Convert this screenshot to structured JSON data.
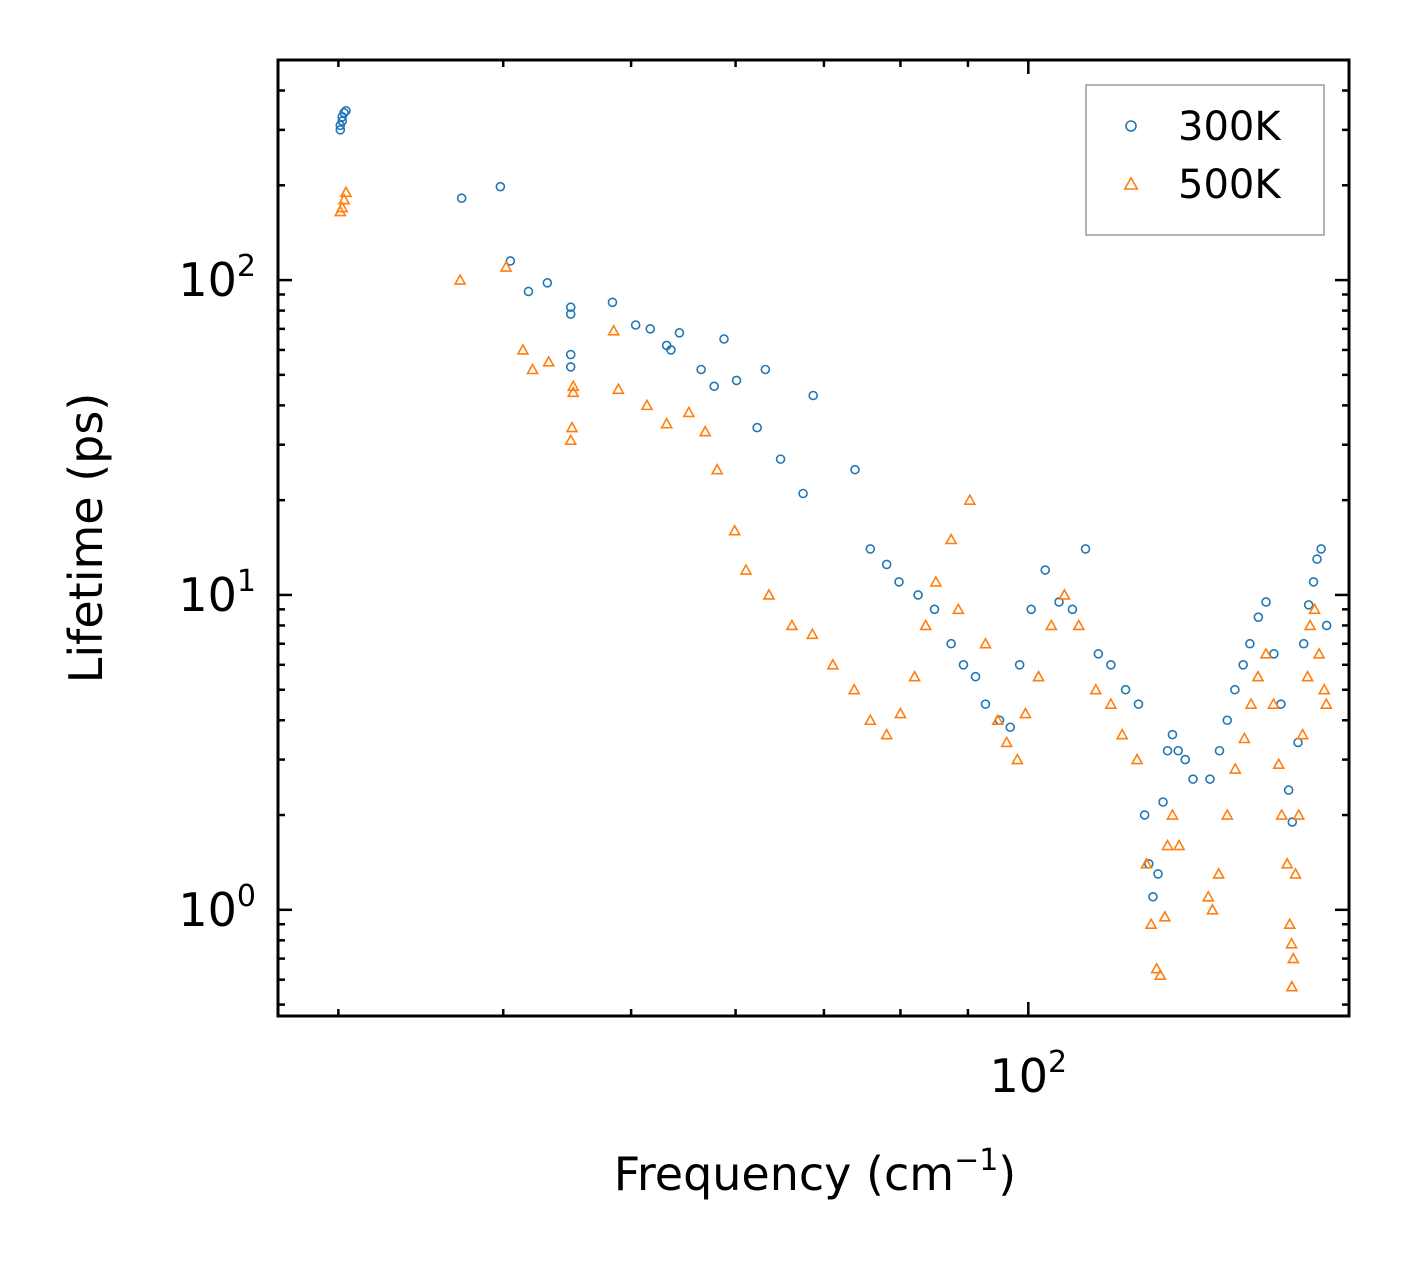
{
  "chart_data": {
    "type": "scatter",
    "title": "",
    "xlabel": "Frequency (cm",
    "xlabel_sup": "−1",
    "xlabel_suffix": ")",
    "ylabel": "Lifetime (ps)",
    "xscale": "log",
    "yscale": "log",
    "xlim": [
      27,
      175
    ],
    "ylim": [
      0.46,
      500
    ],
    "x_major_ticks": [
      {
        "value": 100,
        "base": "10",
        "exp": "2"
      }
    ],
    "y_major_ticks": [
      {
        "value": 1,
        "base": "10",
        "exp": "0"
      },
      {
        "value": 10,
        "base": "10",
        "exp": "1"
      },
      {
        "value": 100,
        "base": "10",
        "exp": "2"
      }
    ],
    "legend": {
      "position": "top-right"
    },
    "series": [
      {
        "name": "300K",
        "marker": "circle",
        "color": "#1f77b4",
        "points": [
          [
            30.3,
            340
          ],
          [
            30.2,
            330
          ],
          [
            30.1,
            310
          ],
          [
            30.1,
            300
          ],
          [
            30.4,
            345
          ],
          [
            30.2,
            320
          ],
          [
            37.2,
            182
          ],
          [
            39.8,
            198
          ],
          [
            40.5,
            115
          ],
          [
            41.8,
            92
          ],
          [
            43.2,
            98
          ],
          [
            45,
            82
          ],
          [
            45,
            78
          ],
          [
            45,
            58
          ],
          [
            45,
            53
          ],
          [
            48.4,
            85
          ],
          [
            50.4,
            72
          ],
          [
            51.7,
            70
          ],
          [
            53.2,
            62
          ],
          [
            53.6,
            60
          ],
          [
            54.4,
            68
          ],
          [
            56.5,
            52
          ],
          [
            57.8,
            46
          ],
          [
            58.8,
            65
          ],
          [
            60.1,
            48
          ],
          [
            62.3,
            34
          ],
          [
            63.2,
            52
          ],
          [
            64.9,
            27
          ],
          [
            67.5,
            21
          ],
          [
            68.7,
            43
          ],
          [
            73.9,
            25
          ],
          [
            75.9,
            14
          ],
          [
            78.1,
            12.5
          ],
          [
            79.8,
            11
          ],
          [
            82.5,
            10
          ],
          [
            84.9,
            9
          ],
          [
            87.4,
            7
          ],
          [
            89.3,
            6
          ],
          [
            91.2,
            5.5
          ],
          [
            92.8,
            4.5
          ],
          [
            95.1,
            4
          ],
          [
            96.9,
            3.8
          ],
          [
            98.5,
            6
          ],
          [
            100.5,
            9
          ],
          [
            103,
            12
          ],
          [
            105.5,
            9.5
          ],
          [
            108,
            9
          ],
          [
            110.5,
            14
          ],
          [
            113,
            6.5
          ],
          [
            115.5,
            6
          ],
          [
            118.5,
            5
          ],
          [
            121.2,
            4.5
          ],
          [
            122.5,
            2
          ],
          [
            123.4,
            1.4
          ],
          [
            124.3,
            1.1
          ],
          [
            125.4,
            1.3
          ],
          [
            126.5,
            2.2
          ],
          [
            127.5,
            3.2
          ],
          [
            128.6,
            3.6
          ],
          [
            129.9,
            3.2
          ],
          [
            131.5,
            3.0
          ],
          [
            133.3,
            2.6
          ],
          [
            137.3,
            2.6
          ],
          [
            139.6,
            3.2
          ],
          [
            141.5,
            4.0
          ],
          [
            143.4,
            5.0
          ],
          [
            145.5,
            6.0
          ],
          [
            147.2,
            7.0
          ],
          [
            149.4,
            8.5
          ],
          [
            151.4,
            9.5
          ],
          [
            153.5,
            6.5
          ],
          [
            155.4,
            4.5
          ],
          [
            157.5,
            2.4
          ],
          [
            158.5,
            1.9
          ],
          [
            160.1,
            3.4
          ],
          [
            161.7,
            7.0
          ],
          [
            163.1,
            9.3
          ],
          [
            164.5,
            11
          ],
          [
            165.5,
            13
          ],
          [
            166.7,
            14
          ],
          [
            168.3,
            8
          ]
        ]
      },
      {
        "name": "500K",
        "marker": "triangle",
        "color": "#ff7f0e",
        "points": [
          [
            30.2,
            170
          ],
          [
            30.1,
            165
          ],
          [
            30.3,
            180
          ],
          [
            30.4,
            190
          ],
          [
            37.1,
            100
          ],
          [
            40.2,
            110
          ],
          [
            41.4,
            60
          ],
          [
            42.1,
            52
          ],
          [
            43.3,
            55
          ],
          [
            45.2,
            46
          ],
          [
            45.2,
            44
          ],
          [
            45.1,
            34
          ],
          [
            45,
            31
          ],
          [
            48.5,
            69
          ],
          [
            48.9,
            45
          ],
          [
            51.4,
            40
          ],
          [
            53.2,
            35
          ],
          [
            55.3,
            38
          ],
          [
            56.9,
            33
          ],
          [
            58.1,
            25
          ],
          [
            59.9,
            16
          ],
          [
            61.1,
            12
          ],
          [
            63.6,
            10
          ],
          [
            66.2,
            8
          ],
          [
            68.6,
            7.5
          ],
          [
            71.1,
            6
          ],
          [
            73.8,
            5
          ],
          [
            75.9,
            4
          ],
          [
            78.1,
            3.6
          ],
          [
            80,
            4.2
          ],
          [
            82,
            5.5
          ],
          [
            83.6,
            8
          ],
          [
            85.1,
            11
          ],
          [
            87.4,
            15
          ],
          [
            88.5,
            9
          ],
          [
            90.3,
            20
          ],
          [
            92.8,
            7
          ],
          [
            94.8,
            4
          ],
          [
            96.3,
            3.4
          ],
          [
            98.1,
            3.0
          ],
          [
            99.5,
            4.2
          ],
          [
            101.8,
            5.5
          ],
          [
            104.1,
            8
          ],
          [
            106.5,
            10
          ],
          [
            109.2,
            8
          ],
          [
            112.5,
            5
          ],
          [
            115.5,
            4.5
          ],
          [
            117.8,
            3.6
          ],
          [
            120.9,
            3.0
          ],
          [
            122.9,
            1.4
          ],
          [
            123.9,
            0.9
          ],
          [
            125.1,
            0.65
          ],
          [
            125.9,
            0.62
          ],
          [
            126.9,
            0.95
          ],
          [
            127.5,
            1.6
          ],
          [
            128.6,
            2.0
          ],
          [
            130.1,
            1.6
          ],
          [
            136.9,
            1.1
          ],
          [
            137.9,
            1.0
          ],
          [
            139.4,
            1.3
          ],
          [
            141.5,
            2.0
          ],
          [
            143.5,
            2.8
          ],
          [
            145.8,
            3.5
          ],
          [
            147.5,
            4.5
          ],
          [
            149.3,
            5.5
          ],
          [
            151.4,
            6.5
          ],
          [
            153.4,
            4.5
          ],
          [
            154.8,
            2.9
          ],
          [
            155.6,
            2.0
          ],
          [
            157.1,
            1.4
          ],
          [
            157.8,
            0.9
          ],
          [
            158.3,
            0.78
          ],
          [
            158.4,
            0.57
          ],
          [
            158.8,
            0.7
          ],
          [
            159.4,
            1.3
          ],
          [
            160.3,
            2.0
          ],
          [
            161.4,
            3.6
          ],
          [
            162.8,
            5.5
          ],
          [
            163.5,
            8
          ],
          [
            164.8,
            9
          ],
          [
            166.1,
            6.5
          ],
          [
            167.6,
            5
          ],
          [
            168.2,
            4.5
          ]
        ]
      }
    ]
  }
}
